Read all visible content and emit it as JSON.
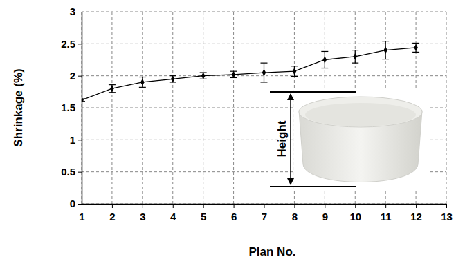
{
  "chart_data": {
    "type": "line",
    "x_label": "Plan No.",
    "y_label": "Shrinkage (%)",
    "x": [
      1,
      2,
      3,
      4,
      5,
      6,
      7,
      8,
      9,
      10,
      11,
      12
    ],
    "values": [
      1.62,
      1.8,
      1.9,
      1.95,
      2.0,
      2.02,
      2.05,
      2.07,
      2.25,
      2.3,
      2.4,
      2.44
    ],
    "errors": [
      0.02,
      0.06,
      0.08,
      0.05,
      0.05,
      0.05,
      0.15,
      0.08,
      0.13,
      0.1,
      0.14,
      0.07
    ],
    "color": "#000000",
    "marker": "diamond",
    "line_style": "solid",
    "xlim": [
      1,
      13
    ],
    "xticks": [
      1,
      2,
      3,
      4,
      5,
      6,
      7,
      8,
      9,
      10,
      11,
      12,
      13
    ],
    "ylim": [
      0,
      3
    ],
    "yticks": [
      0,
      0.5,
      1,
      1.5,
      2,
      2.5,
      3
    ],
    "grid": true,
    "annotations": [
      {
        "text": "Height"
      }
    ]
  }
}
